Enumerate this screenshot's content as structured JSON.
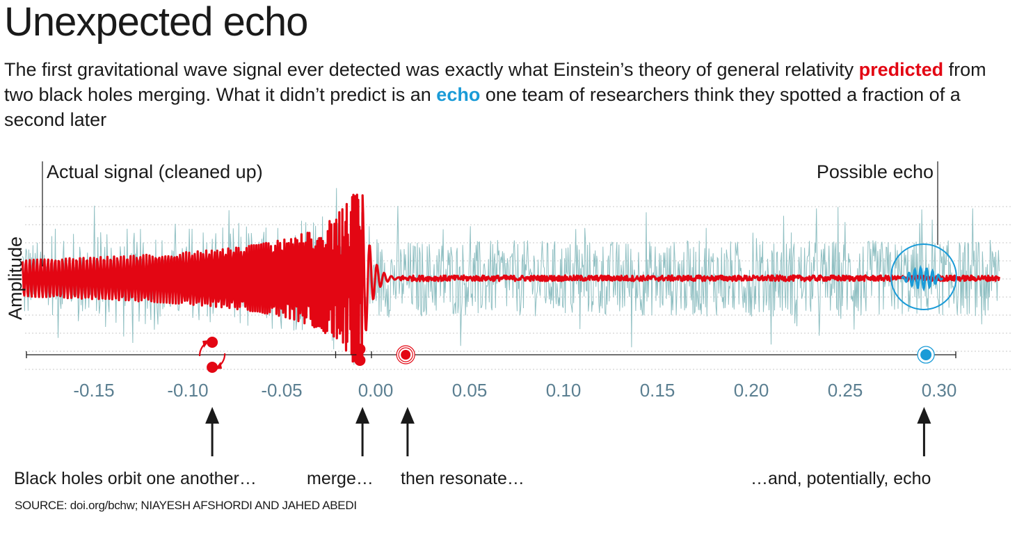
{
  "title": "Unexpected echo",
  "intro": {
    "part1": "The first gravitational wave signal ever detected was exactly what Einstein’s theory of general relativity ",
    "predicted": "predicted",
    "part2": " from two black holes merging. What it didn’t predict is an ",
    "echo": "echo",
    "part3": " one team of researchers think they spotted a fraction of a second later"
  },
  "colors": {
    "predicted": "#e30613",
    "echo": "#1a9bd7",
    "noise": "#8fbfc2",
    "axis_label": "#5b7f91",
    "grid": "#c8c8c8"
  },
  "chart_data": {
    "type": "line",
    "ylabel": "Amplitude",
    "xlabel": "",
    "x_ticks": [
      -0.15,
      -0.1,
      -0.05,
      0.0,
      0.05,
      0.1,
      0.15,
      0.2,
      0.25,
      0.3
    ],
    "x_tick_labels": [
      "-0.15",
      "-0.10",
      "-0.05",
      "0.00",
      "0.05",
      "0.10",
      "0.15",
      "0.20",
      "0.25",
      "0.30"
    ],
    "xlim": [
      -0.188,
      0.332
    ],
    "ylim": [
      -1.6,
      1.6
    ],
    "grid": "horizontal-dotted",
    "annotations": {
      "actual_signal": "Actual signal (cleaned up)",
      "possible_echo": "Possible echo"
    },
    "series": [
      {
        "description_key": "actual",
        "noise_amplitude": 0.55,
        "color": "#8fbfc2"
      },
      {
        "description_key": "predicted",
        "color": "#e30613",
        "inspiral_start": -0.188,
        "merger_time": -0.007,
        "ringdown_end": 0.012,
        "peak_amplitude": 1.2
      },
      {
        "description_key": "echo",
        "color": "#1a9bd7",
        "start": 0.28,
        "end": 0.302,
        "amplitude": 0.15
      }
    ],
    "timeline": {
      "start": -0.185,
      "end": 0.3,
      "end_ticks": [
        -0.025,
        0.0,
        0.3
      ],
      "events": [
        {
          "name": "orbit",
          "time": -0.087
        },
        {
          "name": "merge",
          "time": -0.008
        },
        {
          "name": "resonate",
          "time": 0.016
        },
        {
          "name": "echo",
          "time": 0.293
        }
      ]
    },
    "stages": [
      {
        "label": "Black holes orbit one another…",
        "time": -0.087
      },
      {
        "label": "merge…",
        "time": -0.007
      },
      {
        "label": "then resonate…",
        "time": 0.017
      },
      {
        "label": "…and, potentially, echo",
        "time": 0.292
      }
    ]
  },
  "source": "SOURCE: doi.org/bchw; NIAYESH AFSHORDI AND JAHED ABEDI"
}
